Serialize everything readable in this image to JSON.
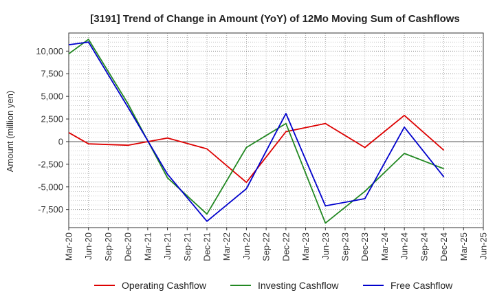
{
  "chart_data": {
    "type": "line",
    "title": "[3191]  Trend of Change in Amount (YoY) of 12Mo Moving Sum of Cashflows",
    "xlabel": "",
    "ylabel": "Amount (million yen)",
    "ylim": [
      -9500,
      12000
    ],
    "y_ticks": [
      10000,
      7500,
      5000,
      2500,
      0,
      -2500,
      -5000,
      -7500
    ],
    "y_tick_labels": [
      "10,000",
      "7,500",
      "5,000",
      "2,500",
      "0",
      "-2,500",
      "-5,000",
      "-7,500"
    ],
    "categories": [
      "Mar-20",
      "Jun-20",
      "Sep-20",
      "Dec-20",
      "Mar-21",
      "Jun-21",
      "Sep-21",
      "Dec-21",
      "Mar-22",
      "Jun-22",
      "Sep-22",
      "Dec-22",
      "Mar-23",
      "Jun-23",
      "Sep-23",
      "Dec-23",
      "Mar-24",
      "Jun-24",
      "Sep-24",
      "Dec-24",
      "Mar-25",
      "Jun-25"
    ],
    "series": [
      {
        "name": "Operating Cashflow",
        "color": "#dd0000",
        "values": [
          1000,
          -250,
          null,
          -400,
          null,
          400,
          null,
          -800,
          null,
          -4500,
          null,
          1100,
          null,
          2000,
          null,
          -650,
          null,
          2900,
          null,
          -950,
          null,
          null
        ]
      },
      {
        "name": "Investing Cashflow",
        "color": "#228822",
        "values": [
          9700,
          11300,
          null,
          4200,
          null,
          -4000,
          null,
          -8000,
          null,
          -650,
          null,
          2000,
          null,
          -9000,
          null,
          -5500,
          null,
          -1300,
          null,
          -3000,
          null,
          null
        ]
      },
      {
        "name": "Free Cashflow",
        "color": "#0000cc",
        "values": [
          10700,
          11000,
          null,
          3800,
          null,
          -3600,
          null,
          -8800,
          null,
          -5200,
          null,
          3100,
          null,
          -7100,
          null,
          -6300,
          null,
          1600,
          null,
          -3900,
          null,
          null
        ]
      }
    ],
    "grid": true,
    "legend_position": "bottom"
  }
}
